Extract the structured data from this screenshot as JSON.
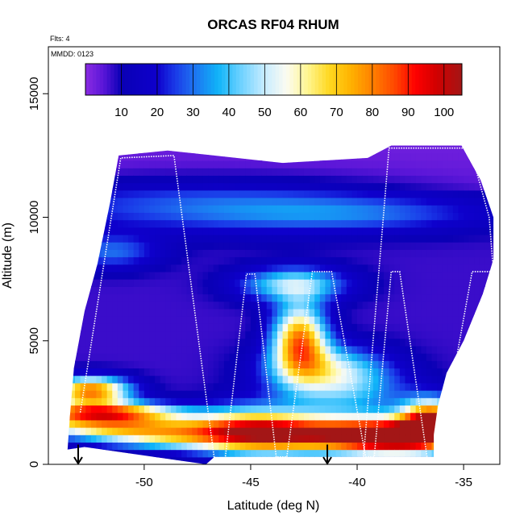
{
  "chart_data": {
    "type": "heatmap",
    "title": "ORCAS RF04 RHUM",
    "corner_note": "Flts: 4",
    "inset_label": "MMDD: 0123",
    "xlabel": "Latitude (deg N)",
    "ylabel": "Altitude (m)",
    "xlim": [
      -54.5,
      -33.3
    ],
    "ylim": [
      0,
      16900
    ],
    "x_ticks": [
      -50,
      -45,
      -40,
      -35
    ],
    "x_tick_labels": [
      "-50",
      "-45",
      "-40",
      "-35"
    ],
    "y_ticks": [
      0,
      5000,
      10000,
      15000
    ],
    "y_tick_labels": [
      "0",
      "5000",
      "10000",
      "15000"
    ],
    "colorbar": {
      "min": 0,
      "max": 105,
      "tick_values": [
        10,
        20,
        30,
        40,
        50,
        60,
        70,
        80,
        90,
        100
      ],
      "tick_labels": [
        "10",
        "20",
        "30",
        "40",
        "50",
        "60",
        "70",
        "80",
        "90",
        "100"
      ],
      "color_stops": [
        {
          "value": 0,
          "color": "#8a2be2"
        },
        {
          "value": 5,
          "color": "#5a16d8"
        },
        {
          "value": 10,
          "color": "#0a00b5"
        },
        {
          "value": 20,
          "color": "#0e00cc"
        },
        {
          "value": 25,
          "color": "#1a3ae8"
        },
        {
          "value": 30,
          "color": "#1e6ff0"
        },
        {
          "value": 37,
          "color": "#10b4f8"
        },
        {
          "value": 43,
          "color": "#68d0ff"
        },
        {
          "value": 50,
          "color": "#c8ecff"
        },
        {
          "value": 56,
          "color": "#fbfbf2"
        },
        {
          "value": 62,
          "color": "#fff590"
        },
        {
          "value": 68,
          "color": "#ffd820"
        },
        {
          "value": 74,
          "color": "#ffb200"
        },
        {
          "value": 80,
          "color": "#ff8000"
        },
        {
          "value": 86,
          "color": "#ff4a00"
        },
        {
          "value": 92,
          "color": "#ff0000"
        },
        {
          "value": 98,
          "color": "#d00000"
        },
        {
          "value": 105,
          "color": "#a31616"
        }
      ]
    },
    "rhum_blobs": [
      {
        "lat": -47,
        "alt": 10500,
        "slat": 7,
        "salt": 800,
        "amp": 20
      },
      {
        "lat": -40,
        "alt": 10100,
        "slat": 5,
        "salt": 500,
        "amp": 15
      },
      {
        "lat": -51.5,
        "alt": 8600,
        "slat": 1.6,
        "salt": 500,
        "amp": 22
      },
      {
        "lat": -43,
        "alt": 7300,
        "slat": 1.8,
        "salt": 500,
        "amp": 40
      },
      {
        "lat": -42.7,
        "alt": 5100,
        "slat": 0.9,
        "salt": 1000,
        "amp": 70
      },
      {
        "lat": -41.5,
        "alt": 3900,
        "slat": 2,
        "salt": 700,
        "amp": 38
      },
      {
        "lat": -40.5,
        "alt": 2800,
        "slat": 2.2,
        "salt": 800,
        "amp": 25
      },
      {
        "lat": -52.5,
        "alt": 3000,
        "slat": 1.3,
        "salt": 400,
        "amp": 75
      },
      {
        "lat": -52,
        "alt": 2100,
        "slat": 2.5,
        "salt": 300,
        "amp": 80
      },
      {
        "lat": -51,
        "alt": 1500,
        "slat": 3.5,
        "salt": 300,
        "amp": 55
      },
      {
        "lat": -49,
        "alt": 1000,
        "slat": 2.5,
        "salt": 300,
        "amp": 35
      },
      {
        "lat": -45,
        "alt": 1400,
        "slat": 2,
        "salt": 700,
        "amp": 55
      },
      {
        "lat": -41.5,
        "alt": 1200,
        "slat": 3,
        "salt": 500,
        "amp": 70
      },
      {
        "lat": -38,
        "alt": 1100,
        "slat": 2,
        "salt": 500,
        "amp": 78
      },
      {
        "lat": -36.5,
        "alt": 1800,
        "slat": 1,
        "salt": 600,
        "amp": 80
      }
    ],
    "data_outline": [
      [
        -53.6,
        600
      ],
      [
        -53.5,
        1800
      ],
      [
        -53.3,
        3900
      ],
      [
        -52.8,
        6200
      ],
      [
        -52.2,
        8100
      ],
      [
        -51.6,
        10600
      ],
      [
        -51.2,
        12500
      ],
      [
        -48.9,
        12700
      ],
      [
        -43.5,
        12200
      ],
      [
        -39.5,
        12400
      ],
      [
        -38.4,
        12900
      ],
      [
        -35.1,
        12900
      ],
      [
        -34.2,
        11500
      ],
      [
        -33.6,
        10000
      ],
      [
        -33.6,
        8300
      ],
      [
        -34.1,
        6900
      ],
      [
        -35.0,
        5000
      ],
      [
        -35.8,
        3700
      ],
      [
        -36.2,
        2400
      ],
      [
        -36.4,
        1200
      ],
      [
        -36.4,
        300
      ],
      [
        -46.7,
        300
      ],
      [
        -47.1,
        0
      ],
      [
        -52.8,
        700
      ]
    ],
    "flight_track": [
      [
        -53.0,
        2100
      ],
      [
        -51.1,
        12400
      ],
      [
        -48.6,
        12500
      ],
      [
        -46.7,
        200
      ],
      [
        -46.2,
        200
      ],
      [
        -45.2,
        7700
      ],
      [
        -44.8,
        7700
      ],
      [
        -43.8,
        300
      ],
      [
        -43.3,
        300
      ],
      [
        -42.1,
        7800
      ],
      [
        -41.2,
        7800
      ],
      [
        -39.6,
        300
      ],
      [
        -39.2,
        300
      ],
      [
        -38.4,
        7800
      ],
      [
        -38.0,
        7800
      ],
      [
        -36.7,
        200
      ],
      [
        -36.2,
        200
      ],
      [
        -34.6,
        7800
      ],
      [
        -33.6,
        7800
      ],
      [
        -33.8,
        10000
      ],
      [
        -34.7,
        12800
      ],
      [
        -38.5,
        12800
      ],
      [
        -39.7,
        300
      ]
    ],
    "arrows": [
      {
        "lat": -53.1,
        "alt_top": 800
      },
      {
        "lat": -41.4,
        "alt_top": 800
      }
    ]
  }
}
